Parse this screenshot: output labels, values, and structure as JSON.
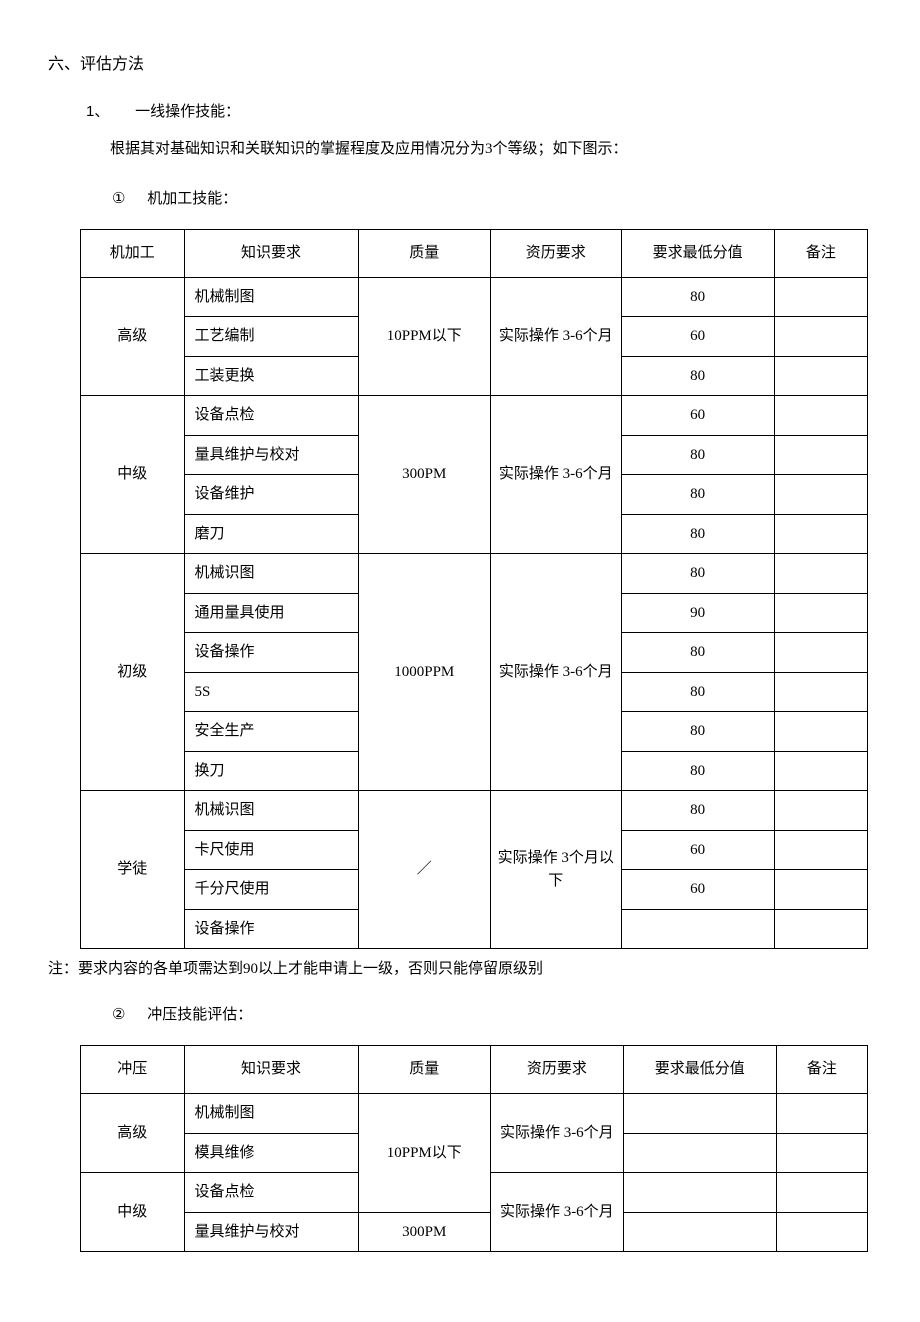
{
  "heading": "六、评估方法",
  "item1_num": "1、",
  "item1_label": "一线操作技能：",
  "item1_desc": "根据其对基础知识和关联知识的掌握程度及应用情况分为3个等级；如下图示：",
  "circled1_num": "①",
  "circled1_label": "机加工技能：",
  "table1": {
    "headers": [
      "机加工",
      "知识要求",
      "质量",
      "资历要求",
      "要求最低分值",
      "备注"
    ],
    "groups": [
      {
        "level": "高级",
        "quality": "10PPM以下",
        "experience": "实际操作 3-6个月",
        "rows": [
          {
            "knowledge": "机械制图",
            "score": "80",
            "remark": ""
          },
          {
            "knowledge": "工艺编制",
            "score": "60",
            "remark": ""
          },
          {
            "knowledge": "工装更换",
            "score": "80",
            "remark": ""
          }
        ]
      },
      {
        "level": "中级",
        "quality": "300PM",
        "experience": "实际操作 3-6个月",
        "rows": [
          {
            "knowledge": "设备点检",
            "score": "60",
            "remark": ""
          },
          {
            "knowledge": "量具维护与校对",
            "score": "80",
            "remark": ""
          },
          {
            "knowledge": "设备维护",
            "score": "80",
            "remark": ""
          },
          {
            "knowledge": "磨刀",
            "score": "80",
            "remark": ""
          }
        ]
      },
      {
        "level": "初级",
        "quality": "1000PPM",
        "experience": "实际操作 3-6个月",
        "rows": [
          {
            "knowledge": "机械识图",
            "score": "80",
            "remark": ""
          },
          {
            "knowledge": "通用量具使用",
            "score": "90",
            "remark": ""
          },
          {
            "knowledge": "设备操作",
            "score": "80",
            "remark": ""
          },
          {
            "knowledge": "5S",
            "score": "80",
            "remark": ""
          },
          {
            "knowledge": "安全生产",
            "score": "80",
            "remark": ""
          },
          {
            "knowledge": "换刀",
            "score": "80",
            "remark": ""
          }
        ]
      },
      {
        "level": "学徒",
        "quality": "／",
        "experience": "实际操作 3个月以下",
        "rows": [
          {
            "knowledge": "机械识图",
            "score": "80",
            "remark": ""
          },
          {
            "knowledge": "卡尺使用",
            "score": "60",
            "remark": ""
          },
          {
            "knowledge": "千分尺使用",
            "score": "60",
            "remark": ""
          },
          {
            "knowledge": "设备操作",
            "score": "",
            "remark": ""
          }
        ]
      }
    ]
  },
  "footnote": "注：要求内容的各单项需达到90以上才能申请上一级，否则只能停留原级别",
  "circled2_num": "②",
  "circled2_label": "冲压技能评估：",
  "table2": {
    "headers": [
      "冲压",
      "知识要求",
      "质量",
      "资历要求",
      "要求最低分值",
      "备注"
    ],
    "groups": [
      {
        "level": "高级",
        "quality": "10PPM以下",
        "experience": "实际操作 3-6个月",
        "rows": [
          {
            "knowledge": "机械制图",
            "score": "",
            "remark": ""
          },
          {
            "knowledge": "模具维修",
            "score": "",
            "remark": ""
          }
        ]
      },
      {
        "level": "中级",
        "quality": "300PM",
        "experience": "实际操作 3-6个月",
        "rows": [
          {
            "knowledge": "设备点检",
            "score": "",
            "remark": ""
          },
          {
            "knowledge": "量具维护与校对",
            "score": "",
            "remark": ""
          }
        ]
      }
    ],
    "quality_col1_span_first3": true
  }
}
